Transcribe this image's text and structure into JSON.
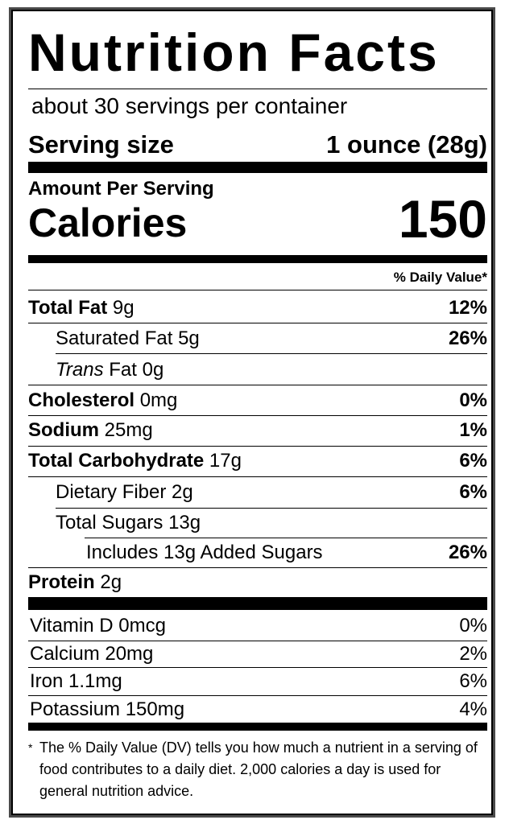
{
  "title": "Nutrition Facts",
  "servings_per_container": "about 30 servings per container",
  "serving_size": {
    "label": "Serving size",
    "value": "1 ounce (28g)"
  },
  "amount_per_serving": "Amount Per Serving",
  "calories": {
    "label": "Calories",
    "value": "150"
  },
  "daily_value_header": "% Daily Value*",
  "nutrients": [
    {
      "bold": "Total Fat",
      "rest": " 9g",
      "dv": "12%"
    },
    {
      "bold": "",
      "rest": "Saturated Fat 5g",
      "dv": "26%"
    },
    {
      "italic": "Trans",
      "rest": " Fat 0g",
      "dv": ""
    },
    {
      "bold": "Cholesterol",
      "rest": " 0mg",
      "dv": "0%"
    },
    {
      "bold": "Sodium",
      "rest": " 25mg",
      "dv": "1%"
    },
    {
      "bold": "Total Carbohydrate",
      "rest": " 17g",
      "dv": "6%"
    },
    {
      "bold": "",
      "rest": "Dietary Fiber 2g",
      "dv": "6%"
    },
    {
      "bold": "",
      "rest": "Total Sugars 13g",
      "dv": ""
    },
    {
      "bold": "",
      "rest": "Includes 13g Added Sugars",
      "dv": "26%"
    },
    {
      "bold": "Protein",
      "rest": " 2g",
      "dv": ""
    }
  ],
  "vitamins": [
    {
      "name": "Vitamin D 0mcg",
      "dv": "0%"
    },
    {
      "name": "Calcium 20mg",
      "dv": "2%"
    },
    {
      "name": "Iron 1.1mg",
      "dv": "6%"
    },
    {
      "name": "Potassium 150mg",
      "dv": "4%"
    }
  ],
  "footnote": {
    "marker": "*",
    "text": "The % Daily Value (DV) tells you how much a nutrient in a serving of food contributes to a daily diet. 2,000 calories a day is used for general nutrition advice."
  }
}
